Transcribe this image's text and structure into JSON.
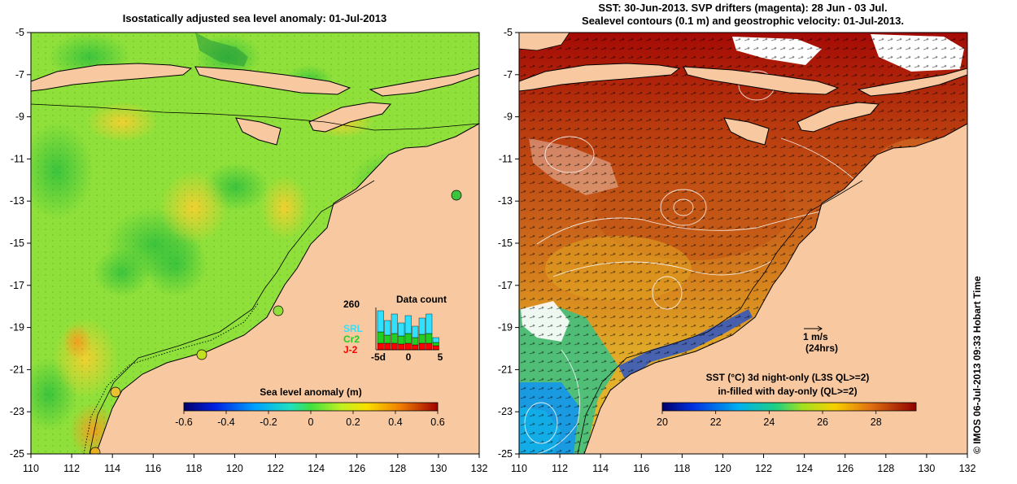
{
  "colors": {
    "land": "#f8c9a0",
    "sla_background": "#8fe03a",
    "sst_background": "#c86418",
    "coast": "#000000",
    "sst_cold": "#1a9ae0",
    "sst_hot": "#a00000"
  },
  "left_panel": {
    "title": "Isostatically adjusted sea level anomaly: 01-Jul-2013",
    "x_ticks": [
      "110",
      "112",
      "114",
      "116",
      "118",
      "120",
      "122",
      "124",
      "126",
      "128",
      "130",
      "132"
    ],
    "y_ticks": [
      "-5",
      "-7",
      "-9",
      "-11",
      "-13",
      "-15",
      "-17",
      "-19",
      "-21",
      "-23",
      "-25"
    ],
    "colorbar": {
      "label": "Sea level anomaly (m)",
      "ticks": [
        "-0.6",
        "-0.4",
        "-0.2",
        "0",
        "0.2",
        "0.4",
        "0.6"
      ],
      "min": -0.6,
      "max": 0.6
    },
    "data_count": {
      "title": "Data count",
      "max_label": "260",
      "x_ticks": [
        "-5d",
        "0",
        "5"
      ],
      "legend": [
        {
          "name": "SRL",
          "color": "#30e0ff"
        },
        {
          "name": "Cr2",
          "color": "#20d020"
        },
        {
          "name": "J-2",
          "color": "#ff0000"
        }
      ]
    }
  },
  "right_panel": {
    "title_line1": "SST: 30-Jun-2013. SVP drifters (magenta): 28 Jun - 03 Jul.",
    "title_line2": "Sealevel contours (0.1 m) and geostrophic velocity: 01-Jul-2013.",
    "x_ticks": [
      "110",
      "112",
      "114",
      "116",
      "118",
      "120",
      "122",
      "124",
      "126",
      "128",
      "130",
      "132"
    ],
    "y_ticks": [
      "-5",
      "-7",
      "-9",
      "-11",
      "-13",
      "-15",
      "-17",
      "-19",
      "-21",
      "-23",
      "-25"
    ],
    "velocity_scale": {
      "value": "1 m/s",
      "note": "(24hrs)"
    },
    "colorbar": {
      "label_line1": "SST (°C)  3d night-only (L3S QL>=2)",
      "label_line2": "in-filled with day-only (QL>=2)",
      "ticks": [
        "20",
        "22",
        "24",
        "26",
        "28"
      ],
      "min": 20,
      "max": 29.5
    }
  },
  "credit": "© IMOS 06-Jul-2013 09:33 Hobart Time"
}
